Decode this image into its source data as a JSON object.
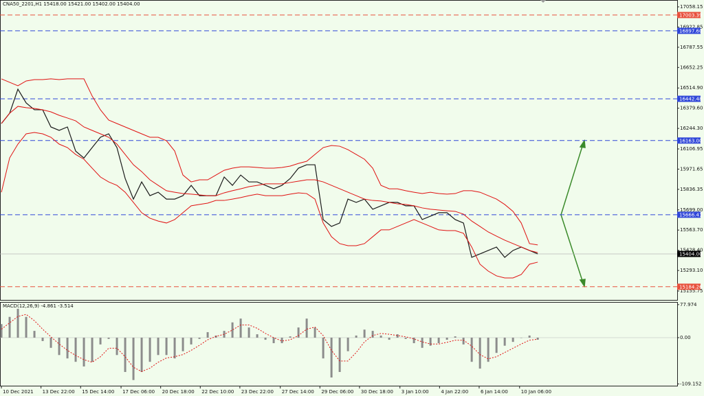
{
  "chart_data": [
    {
      "type": "line",
      "title": "CNA50_2201,H1  15418.00 15421.00 15402.00 15404.00",
      "x": [
        0,
        1,
        2,
        3,
        4,
        5,
        6,
        7,
        8,
        9,
        10,
        11,
        12,
        13,
        14,
        15,
        16,
        17,
        18,
        19,
        20,
        21,
        22,
        23,
        24,
        25,
        26,
        27,
        28,
        29,
        30,
        31,
        32,
        33,
        34,
        35,
        36,
        37,
        38,
        39,
        40,
        41,
        42,
        43,
        44,
        45,
        46,
        47,
        48,
        49,
        50,
        51,
        52,
        53,
        54,
        55,
        56,
        57,
        58,
        59,
        60,
        61,
        62,
        63,
        64,
        65
      ],
      "xlim": [
        -0.17,
        81.9
      ],
      "ylim": [
        15096,
        17104
      ],
      "yticks": [
        {
          "value": 17058.15,
          "label": "17058.15"
        },
        {
          "value": 16922.85,
          "label": "16922.85"
        },
        {
          "value": 16787.55,
          "label": "16787.55"
        },
        {
          "value": 16652.25,
          "label": "16652.25"
        },
        {
          "value": 16514.9,
          "label": "16514.90"
        },
        {
          "value": 16379.6,
          "label": "16379.60"
        },
        {
          "value": 16244.3,
          "label": "16244.30"
        },
        {
          "value": 16106.95,
          "label": "16106.95"
        },
        {
          "value": 15971.65,
          "label": "15971.65"
        },
        {
          "value": 15836.35,
          "label": "15836.35"
        },
        {
          "value": 15699,
          "label": "15699.00"
        },
        {
          "value": 15563.7,
          "label": "15563.70"
        },
        {
          "value": 15428.4,
          "label": "15428.40"
        },
        {
          "value": 15293.1,
          "label": "15293.10"
        },
        {
          "value": 15155.75,
          "label": "15155.75"
        }
      ],
      "levels": [
        {
          "value": 17003.39,
          "label": "17003.39",
          "color": "#e8503c",
          "style": "dashed"
        },
        {
          "value": 16897.6,
          "label": "16897.60",
          "color": "#2f46d8",
          "style": "dashed"
        },
        {
          "value": 16442.48,
          "label": "16442.48",
          "color": "#2f46d8",
          "style": "dashed"
        },
        {
          "value": 16163,
          "label": "16163.00",
          "color": "#2f46d8",
          "style": "dashed"
        },
        {
          "value": 15666.41,
          "label": "15666.41",
          "color": "#2f46d8",
          "style": "dashed"
        },
        {
          "value": 15404,
          "label": "15404.00",
          "color": "#000000",
          "style": "solid"
        },
        {
          "value": 15184.26,
          "label": "15184.26",
          "color": "#e8503c",
          "style": "dashed"
        }
      ],
      "series": [
        {
          "color": "#1a1a1a",
          "width": 1.2,
          "values": [
            16277,
            16346,
            16507,
            16415,
            16369,
            16369,
            16254,
            16231,
            16254,
            16092,
            16046,
            16116,
            16185,
            16208,
            16116,
            15909,
            15771,
            15886,
            15794,
            15817,
            15771,
            15771,
            15794,
            15863,
            15794,
            15794,
            15794,
            15919,
            15863,
            15932,
            15886,
            15886,
            15863,
            15840,
            15863,
            15909,
            15978,
            16001,
            16001,
            15634,
            15588,
            15611,
            15771,
            15749,
            15771,
            15703,
            15726,
            15749,
            15749,
            15726,
            15726,
            15634,
            15657,
            15680,
            15680,
            15634,
            15611,
            15381,
            15404,
            15427,
            15450,
            15381,
            15427,
            15450,
            15427,
            15404
          ]
        },
        {
          "color": "#e01010",
          "width": 1,
          "values": [
            16576,
            16553,
            16530,
            16562,
            16571,
            16571,
            16576,
            16571,
            16576,
            16576,
            16576,
            16461,
            16369,
            16300,
            16277,
            16254,
            16231,
            16208,
            16185,
            16185,
            16162,
            16093,
            15932,
            15886,
            15900,
            15900,
            15932,
            15964,
            15978,
            15987,
            15987,
            15983,
            15978,
            15978,
            15983,
            15992,
            16010,
            16024,
            16070,
            16116,
            16130,
            16125,
            16102,
            16070,
            16038,
            15978,
            15863,
            15840,
            15840,
            15827,
            15817,
            15808,
            15817,
            15808,
            15804,
            15808,
            15827,
            15827,
            15817,
            15794,
            15771,
            15735,
            15689,
            15611,
            15473,
            15464
          ]
        },
        {
          "color": "#e01010",
          "width": 1,
          "values": [
            16277,
            16346,
            16392,
            16383,
            16378,
            16369,
            16355,
            16332,
            16314,
            16295,
            16254,
            16231,
            16208,
            16185,
            16139,
            16070,
            16001,
            15955,
            15900,
            15863,
            15827,
            15817,
            15808,
            15804,
            15799,
            15794,
            15794,
            15813,
            15827,
            15840,
            15854,
            15863,
            15873,
            15873,
            15873,
            15882,
            15891,
            15900,
            15900,
            15886,
            15863,
            15840,
            15817,
            15794,
            15771,
            15762,
            15758,
            15749,
            15739,
            15735,
            15726,
            15712,
            15703,
            15698,
            15693,
            15689,
            15670,
            15624,
            15588,
            15551,
            15523,
            15496,
            15473,
            15450,
            15427,
            15413
          ]
        },
        {
          "color": "#e01010",
          "width": 1,
          "values": [
            15817,
            16047,
            16139,
            16208,
            16217,
            16208,
            16185,
            16139,
            16116,
            16070,
            16038,
            15978,
            15919,
            15886,
            15863,
            15817,
            15749,
            15680,
            15643,
            15624,
            15611,
            15634,
            15680,
            15726,
            15735,
            15744,
            15762,
            15762,
            15771,
            15781,
            15794,
            15804,
            15794,
            15794,
            15794,
            15804,
            15813,
            15808,
            15771,
            15611,
            15519,
            15473,
            15459,
            15459,
            15473,
            15519,
            15565,
            15565,
            15588,
            15611,
            15634,
            15611,
            15588,
            15565,
            15560,
            15560,
            15542,
            15450,
            15335,
            15289,
            15257,
            15243,
            15243,
            15266,
            15335,
            15349
          ]
        }
      ]
    },
    {
      "type": "bar",
      "title": "MACD(12,26,9) -4.861 -3.514",
      "x": [
        0,
        1,
        2,
        3,
        4,
        5,
        6,
        7,
        8,
        9,
        10,
        11,
        12,
        13,
        14,
        15,
        16,
        17,
        18,
        19,
        20,
        21,
        22,
        23,
        24,
        25,
        26,
        27,
        28,
        29,
        30,
        31,
        32,
        33,
        34,
        35,
        36,
        37,
        38,
        39,
        40,
        41,
        42,
        43,
        44,
        45,
        46,
        47,
        48,
        49,
        50,
        51,
        52,
        53,
        54,
        55,
        56,
        57,
        58,
        59,
        60,
        61,
        62,
        63,
        64,
        65
      ],
      "xlim": [
        -0.17,
        81.9
      ],
      "ylim": [
        -113.4,
        84.2
      ],
      "yticks": [
        {
          "value": 77.974,
          "label": "77.974"
        },
        {
          "value": 0,
          "label": "0.00"
        },
        {
          "value": -109.152,
          "label": "-109.152"
        }
      ],
      "xticks": [
        {
          "value": 0,
          "label": "10 Dec 2021"
        },
        {
          "value": 4.8,
          "label": "13 Dec 22:00"
        },
        {
          "value": 9.6,
          "label": "15 Dec 14:00"
        },
        {
          "value": 14.5,
          "label": "17 Dec 06:00"
        },
        {
          "value": 19.3,
          "label": "20 Dec 18:00"
        },
        {
          "value": 24.1,
          "label": "22 Dec 10:00"
        },
        {
          "value": 28.9,
          "label": "23 Dec 22:00"
        },
        {
          "value": 33.8,
          "label": "27 Dec 14:00"
        },
        {
          "value": 38.6,
          "label": "29 Dec 06:00"
        },
        {
          "value": 43.4,
          "label": "30 Dec 18:00"
        },
        {
          "value": 48.3,
          "label": "3 Jan 10:00"
        },
        {
          "value": 53.1,
          "label": "4 Jan 22:00"
        },
        {
          "value": 57.9,
          "label": "6 Jan 14:00"
        },
        {
          "value": 62.8,
          "label": "10 Jan 06:00"
        }
      ],
      "series": [
        {
          "type": "bar",
          "color": "#8c8c8c",
          "values": [
            32,
            49,
            68,
            49,
            16,
            -8,
            -24,
            -41,
            -49,
            -57,
            -68,
            -57,
            -16,
            -3,
            -41,
            -81,
            -100,
            -81,
            -57,
            -41,
            -41,
            -49,
            -32,
            -16,
            -3,
            13,
            5,
            16,
            36,
            45,
            24,
            8,
            -5,
            -13,
            -13,
            3,
            24,
            45,
            24,
            -49,
            -94,
            -81,
            -32,
            5,
            19,
            16,
            5,
            -5,
            8,
            -3,
            -13,
            -24,
            -19,
            -13,
            -5,
            3,
            -16,
            -57,
            -73,
            -57,
            -36,
            -19,
            -10,
            0,
            5,
            -4.861
          ]
        },
        {
          "type": "line",
          "color": "#e01010",
          "dash": true,
          "values": [
            20,
            35,
            50,
            55,
            40,
            20,
            2,
            -15,
            -30,
            -42,
            -52,
            -58,
            -45,
            -25,
            -25,
            -45,
            -70,
            -80,
            -72,
            -58,
            -48,
            -45,
            -40,
            -30,
            -18,
            -5,
            3,
            8,
            18,
            30,
            30,
            22,
            10,
            0,
            -8,
            -5,
            5,
            20,
            25,
            5,
            -30,
            -55,
            -55,
            -35,
            -10,
            5,
            10,
            8,
            5,
            2,
            -3,
            -10,
            -15,
            -15,
            -11,
            -6,
            -6,
            -20,
            -40,
            -50,
            -45,
            -35,
            -25,
            -15,
            -6,
            -3.514
          ]
        }
      ]
    }
  ]
}
